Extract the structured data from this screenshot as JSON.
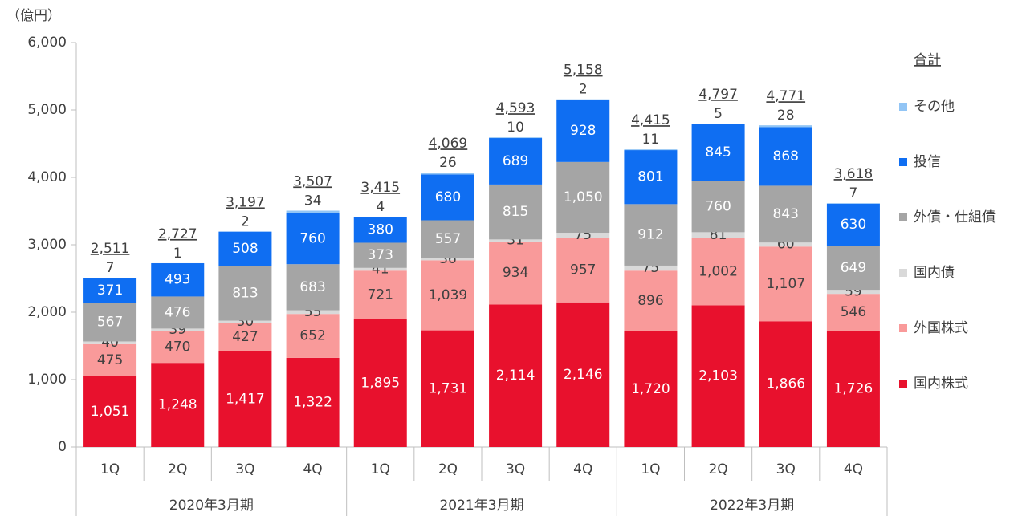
{
  "chart_data": {
    "type": "stacked_bar",
    "y_label": "（億円）",
    "categories": [
      "1Q",
      "2Q",
      "3Q",
      "4Q",
      "1Q",
      "2Q",
      "3Q",
      "4Q",
      "1Q",
      "2Q",
      "3Q",
      "4Q"
    ],
    "groups": [
      "2020年3月期",
      "2021年3月期",
      "2022年3月期"
    ],
    "series": [
      {
        "name": "国内株式",
        "color": "#e8112d",
        "values": [
          1051,
          1248,
          1417,
          1322,
          1895,
          1731,
          2114,
          2146,
          1720,
          2103,
          1866,
          1726
        ],
        "value_labels": [
          "1,051",
          "1,248",
          "1,417",
          "1,322",
          "1,895",
          "1,731",
          "2,114",
          "2,146",
          "1,720",
          "2,103",
          "1,866",
          "1,726"
        ]
      },
      {
        "name": "外国株式",
        "color": "#f99a9a",
        "values": [
          475,
          470,
          427,
          652,
          721,
          1039,
          934,
          957,
          896,
          1002,
          1107,
          546
        ],
        "value_labels": [
          "475",
          "470",
          "427",
          "652",
          "721",
          "1,039",
          "934",
          "957",
          "896",
          "1,002",
          "1,107",
          "546"
        ]
      },
      {
        "name": "国内債",
        "color": "#d9d9d9",
        "values": [
          40,
          39,
          30,
          55,
          41,
          36,
          31,
          75,
          75,
          81,
          60,
          59
        ]
      },
      {
        "name": "外債・仕組債",
        "color": "#a5a5a5",
        "values": [
          567,
          476,
          813,
          683,
          373,
          557,
          815,
          1050,
          912,
          760,
          843,
          649
        ],
        "value_labels": [
          "567",
          "476",
          "813",
          "683",
          "373",
          "557",
          "815",
          "1,050",
          "912",
          "760",
          "843",
          "649"
        ]
      },
      {
        "name": "投信",
        "color": "#0f6ef2",
        "values": [
          371,
          493,
          508,
          760,
          380,
          680,
          689,
          928,
          801,
          845,
          868,
          630
        ]
      },
      {
        "name": "その他",
        "color": "#92c5f5",
        "values": [
          7,
          1,
          2,
          34,
          4,
          26,
          10,
          2,
          11,
          5,
          28,
          7
        ]
      }
    ],
    "totals_name": "合計",
    "totals": [
      2511,
      2727,
      3197,
      3507,
      3415,
      4069,
      4593,
      5158,
      4415,
      4797,
      4771,
      3618
    ],
    "total_labels": [
      "2,511",
      "2,727",
      "3,197",
      "3,507",
      "3,415",
      "4,069",
      "4,593",
      "5,158",
      "4,415",
      "4,797",
      "4,771",
      "3,618"
    ],
    "ylim": [
      0,
      6000
    ],
    "yticks": [
      0,
      {
        "value": 1000,
        "label": "1,000"
      },
      {
        "value": 2000,
        "label": "2,000"
      },
      {
        "value": 3000,
        "label": "3,000"
      },
      {
        "value": 4000,
        "label": "4,000"
      },
      {
        "value": 5000,
        "label": "5,000"
      },
      {
        "value": 6000,
        "label": "6,000"
      }
    ],
    "legend": "right"
  }
}
